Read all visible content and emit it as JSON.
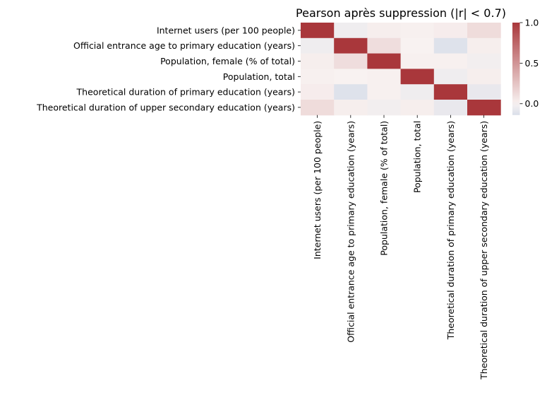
{
  "chart_data": {
    "type": "heatmap",
    "title": "Pearson après suppression (|r| < 0.7)",
    "rows": [
      "Internet users (per 100 people)",
      "Official entrance age to primary education (years)",
      "Population, female (% of total)",
      "Population, total",
      "Theoretical duration of primary education (years)",
      "Theoretical duration of upper secondary education (years)"
    ],
    "columns": [
      "Internet users (per 100 people)",
      "Official entrance age to primary education (years)",
      "Population, female (% of total)",
      "Population, total",
      "Theoretical duration of primary education (years)",
      "Theoretical duration of upper secondary education (years)"
    ],
    "values": [
      [
        1.0,
        -0.04,
        0.02,
        0.01,
        0.03,
        0.12
      ],
      [
        -0.04,
        1.0,
        0.11,
        0.0,
        -0.12,
        0.02
      ],
      [
        0.02,
        0.11,
        1.0,
        0.01,
        0.01,
        -0.03
      ],
      [
        0.01,
        0.0,
        0.01,
        1.0,
        -0.04,
        0.02
      ],
      [
        0.03,
        -0.12,
        0.01,
        -0.04,
        1.0,
        -0.07
      ],
      [
        0.12,
        0.02,
        -0.03,
        0.02,
        -0.07,
        1.0
      ]
    ],
    "colormap": "vlag (blue–white–red, centered at 0)",
    "color_range": [
      -0.14,
      1.0
    ],
    "colorbar_ticks": [
      "1.0",
      "0.5",
      "0.0"
    ],
    "colorbar_tick_values": [
      1.0,
      0.5,
      0.0
    ],
    "colors": {
      "negative": "#2369bd",
      "neutral": "#f8f2f1",
      "positive": "#a9373b"
    }
  }
}
